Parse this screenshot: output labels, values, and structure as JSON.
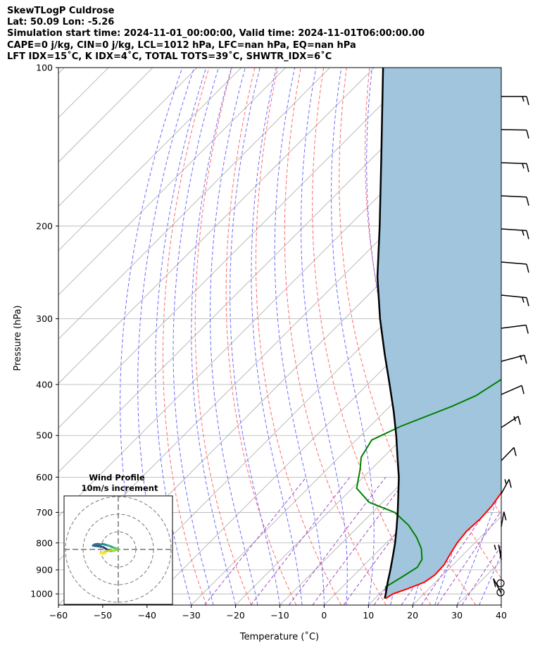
{
  "header": {
    "line1": "SkewTLogP Culdrose",
    "line2": "Lat: 50.09   Lon: -5.26",
    "line3": "Simulation start time: 2024-11-01_00:00:00, Valid time: 2024-11-01T06:00:00.00",
    "line4": "CAPE=0 j/kg, CIN=0 j/kg, LCL=1012 hPa, LFC=nan hPa, EQ=nan hPa",
    "line5": "LFT IDX=15˚C, K IDX=4˚C, TOTAL TOTS=39˚C, SHWTR_IDX=6˚C"
  },
  "chart_data": {
    "type": "skewt",
    "xlabel": "Temperature (˚C)",
    "ylabel": "Pressure (hPa)",
    "xlim": [
      -60,
      40
    ],
    "ylim": [
      1050,
      100
    ],
    "x_ticks": [
      "−60",
      "−50",
      "−40",
      "−30",
      "−20",
      "−10",
      "0",
      "10",
      "20",
      "30",
      "40"
    ],
    "y_ticks": [
      "100",
      "200",
      "300",
      "400",
      "500",
      "600",
      "700",
      "800",
      "900",
      "1000"
    ],
    "y_tick_values": [
      100,
      200,
      300,
      400,
      500,
      600,
      700,
      800,
      900,
      1000
    ],
    "grid": true,
    "colors": {
      "temperature": "#ff0000",
      "dewpoint": "#008000",
      "parcel": "#000000",
      "area": "#a2c5de",
      "dry_adiabats": "#ff6b6b",
      "moist_adiabats": "#6d6dff",
      "mixing_ratio": "#a048c8",
      "isotherms": "#aaaaaa"
    },
    "temperature": [
      [
        1020,
        12.4
      ],
      [
        1000,
        13
      ],
      [
        980,
        15
      ],
      [
        950,
        17.5
      ],
      [
        920,
        18.2
      ],
      [
        880,
        18
      ],
      [
        850,
        17.2
      ],
      [
        800,
        16
      ],
      [
        760,
        15.5
      ],
      [
        720,
        15.8
      ],
      [
        680,
        15.5
      ],
      [
        640,
        14.6
      ],
      [
        600,
        13.2
      ],
      [
        550,
        10.5
      ],
      [
        500,
        7
      ],
      [
        450,
        3.5
      ],
      [
        400,
        0
      ],
      [
        350,
        -4.5
      ],
      [
        300,
        -9.7
      ],
      [
        270,
        -12.5
      ],
      [
        245,
        -14.4
      ],
      [
        225,
        -15.7
      ],
      [
        210,
        -16.2
      ],
      [
        200,
        -16.3
      ],
      [
        185,
        -15.7
      ],
      [
        175,
        -14.5
      ],
      [
        165,
        -13.3
      ],
      [
        150,
        -11.8
      ],
      [
        140,
        -10.3
      ],
      [
        120,
        -6.5
      ],
      [
        110,
        -4
      ],
      [
        100,
        -1.6
      ]
    ],
    "dewpoint": [
      [
        1000,
        11.5
      ],
      [
        970,
        9.8
      ],
      [
        930,
        11.2
      ],
      [
        890,
        12.5
      ],
      [
        860,
        11.8
      ],
      [
        820,
        9.2
      ],
      [
        780,
        5.5
      ],
      [
        740,
        1
      ],
      [
        700,
        -5
      ],
      [
        670,
        -13
      ],
      [
        630,
        -19
      ],
      [
        580,
        -22.5
      ],
      [
        550,
        -25
      ],
      [
        510,
        -26.5
      ],
      [
        480,
        -23
      ],
      [
        440,
        -16
      ],
      [
        420,
        -13
      ],
      [
        390,
        -10.8
      ],
      [
        360,
        -10
      ],
      [
        330,
        -10.5
      ],
      [
        300,
        -11.5
      ],
      [
        280,
        -14
      ],
      [
        250,
        -18
      ],
      [
        225,
        -20.2
      ],
      [
        200,
        -21.2
      ],
      [
        185,
        -21
      ],
      [
        170,
        -20.8
      ],
      [
        155,
        -22.8
      ],
      [
        145,
        -25.2
      ],
      [
        130,
        -26.8
      ],
      [
        120,
        -26.5
      ],
      [
        110,
        -25.8
      ],
      [
        100,
        -25
      ]
    ],
    "parcel": [
      [
        1020,
        12.2
      ],
      [
        1000,
        11.4
      ],
      [
        950,
        9.2
      ],
      [
        900,
        7
      ],
      [
        850,
        4.6
      ],
      [
        800,
        2
      ],
      [
        750,
        -1
      ],
      [
        700,
        -4.3
      ],
      [
        650,
        -8
      ],
      [
        600,
        -12
      ],
      [
        550,
        -16.8
      ],
      [
        500,
        -22
      ],
      [
        450,
        -28
      ],
      [
        400,
        -35
      ],
      [
        350,
        -43
      ],
      [
        300,
        -52
      ],
      [
        250,
        -62
      ],
      [
        200,
        -73
      ],
      [
        150,
        -87.5
      ],
      [
        100,
        -108
      ]
    ],
    "wind_profile": {
      "title": "Wind Profile",
      "subtitle": "10m/s increment"
    },
    "barb_count": 16
  }
}
